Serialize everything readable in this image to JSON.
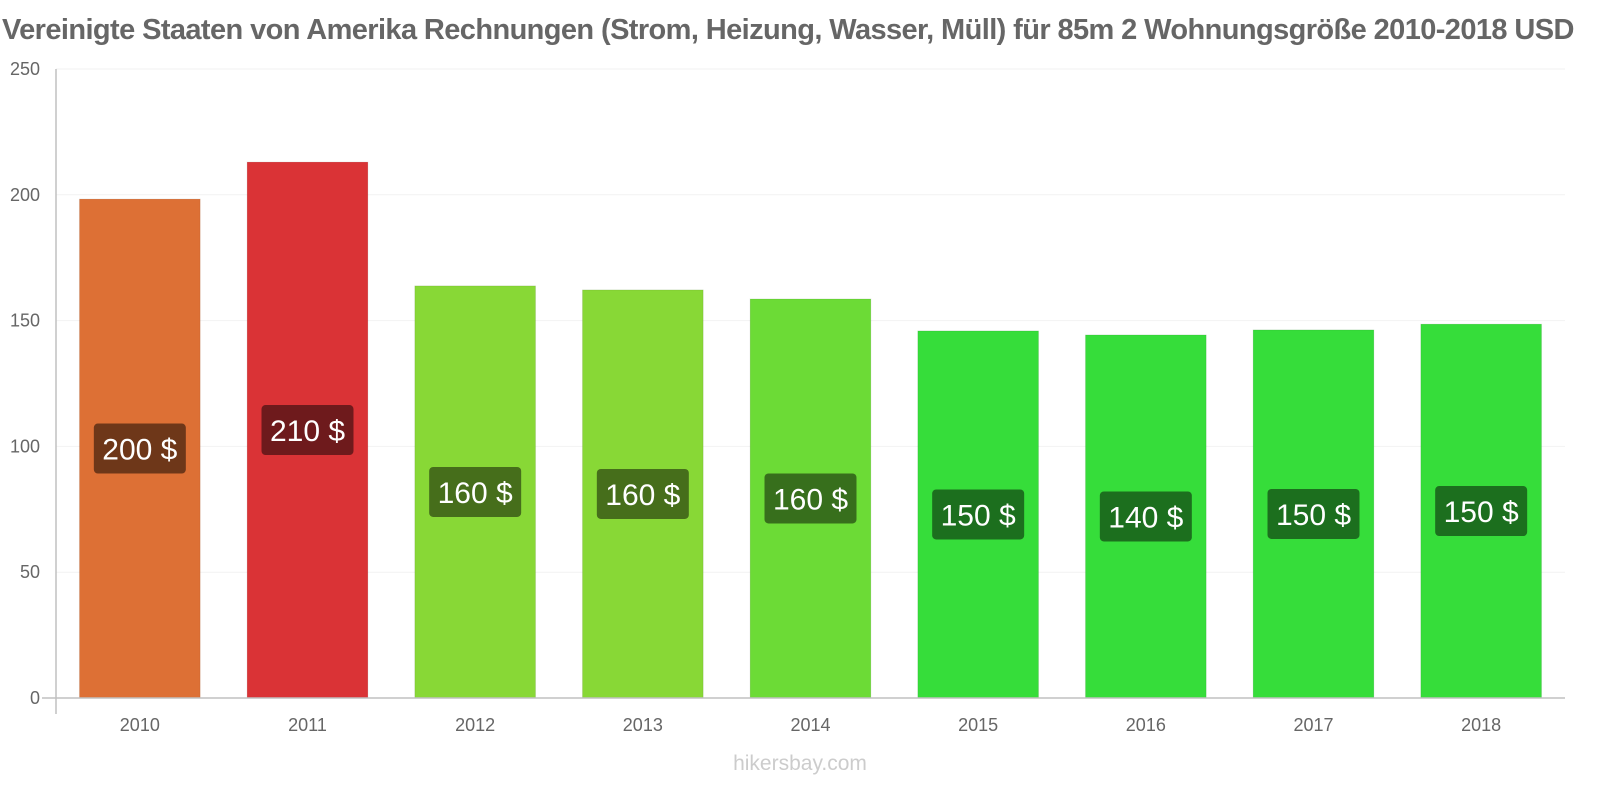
{
  "chart_data": {
    "type": "bar",
    "title": "Vereinigte Staaten von Amerika Rechnungen (Strom, Heizung, Wasser, Müll) für 85m 2 Wohnungsgröße 2010-2018 USD",
    "xlabel": "",
    "ylabel": "",
    "ylim": [
      0,
      250
    ],
    "yticks": [
      0,
      50,
      100,
      150,
      200,
      250
    ],
    "grid": true,
    "categories": [
      "2010",
      "2011",
      "2012",
      "2013",
      "2014",
      "2015",
      "2016",
      "2017",
      "2018"
    ],
    "values": [
      198.3,
      213.0,
      163.8,
      162.2,
      158.6,
      145.9,
      144.3,
      146.3,
      148.6
    ],
    "data_labels": [
      "200 $",
      "210 $",
      "160 $",
      "160 $",
      "160 $",
      "150 $",
      "140 $",
      "150 $",
      "150 $"
    ],
    "bar_colors": [
      "#dd7035",
      "#da3336",
      "#88d836",
      "#88d836",
      "#6cdb36",
      "#36dd3a",
      "#36dd3a",
      "#36dd3a",
      "#36dd3a"
    ],
    "label_bg_colors": [
      "#6e3719",
      "#6e1a1c",
      "#466e1b",
      "#466e1b",
      "#376f1c",
      "#1c6f1e",
      "#1c6f1e",
      "#1c6f1e",
      "#1c6f1e"
    ]
  },
  "watermark": "hikersbay.com"
}
